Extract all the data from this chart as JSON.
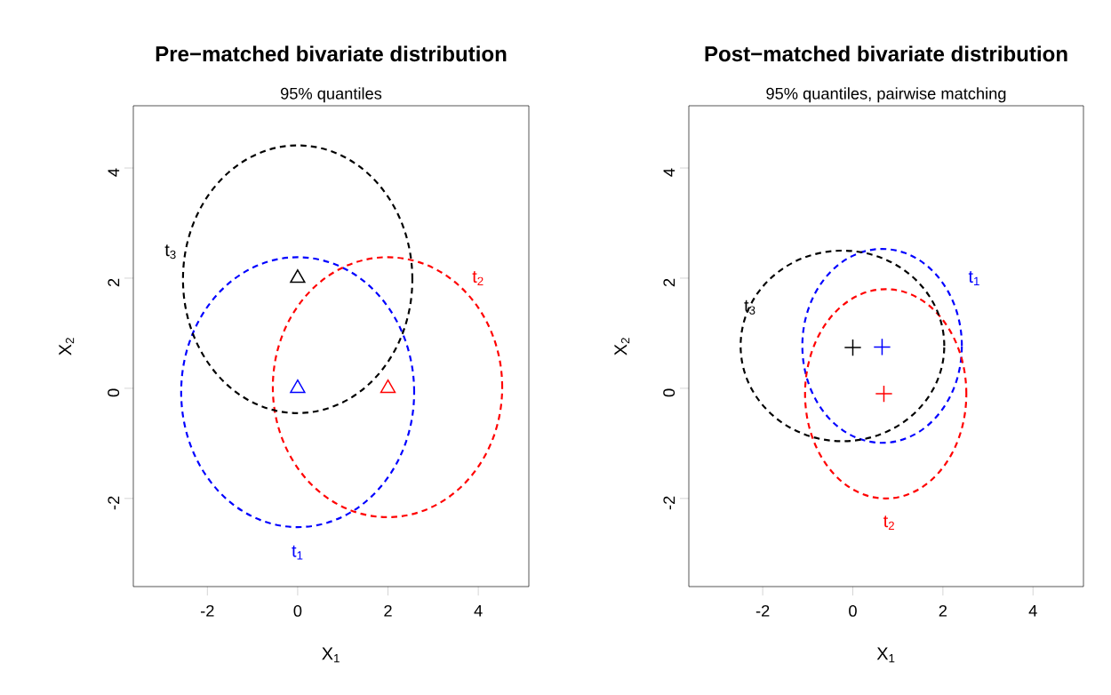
{
  "chart_data": [
    {
      "type": "scatter",
      "title": "Pre−matched bivariate distribution",
      "subtitle": "95% quantiles",
      "xlabel": "X$_{1}$",
      "ylabel": "X$_{2}$",
      "xlim": [
        -3.64,
        5.12
      ],
      "ylim": [
        -3.6,
        5.13
      ],
      "xticks": [
        -2,
        0,
        2,
        4
      ],
      "yticks": [
        -2,
        0,
        2,
        4
      ],
      "marker": "triangle",
      "annotations": [
        "t$_{1}$",
        "t$_{2}$",
        "t$_{3}$"
      ],
      "series": [
        {
          "color": "#000000",
          "x": [
            0
          ],
          "values": [
            2
          ]
        },
        {
          "color": "#0000ff",
          "x": [
            0
          ],
          "values": [
            0
          ]
        },
        {
          "color": "#ff0000",
          "x": [
            2
          ],
          "values": [
            0
          ]
        }
      ]
    },
    {
      "type": "scatter",
      "title": "Post−matched bivariate distribution",
      "subtitle": "95% quantiles, pairwise matching",
      "xlabel": "X$_{1}$",
      "ylabel": "X$_{2}$",
      "xlim": [
        -3.64,
        5.12
      ],
      "ylim": [
        -3.6,
        5.13
      ],
      "xticks": [
        -2,
        0,
        2,
        4
      ],
      "yticks": [
        -2,
        0,
        2,
        4
      ],
      "marker": "cross",
      "annotations": [
        "t$_{1}$",
        "t$_{2}$",
        "t$_{3}$"
      ],
      "series": [
        {
          "color": "#000000",
          "x": [
            0
          ],
          "values": [
            0.74
          ]
        },
        {
          "color": "#0000ff",
          "x": [
            0.65
          ],
          "values": [
            0.75
          ]
        },
        {
          "color": "#ff0000",
          "x": [
            0.69
          ],
          "values": [
            -0.1
          ]
        }
      ]
    }
  ]
}
